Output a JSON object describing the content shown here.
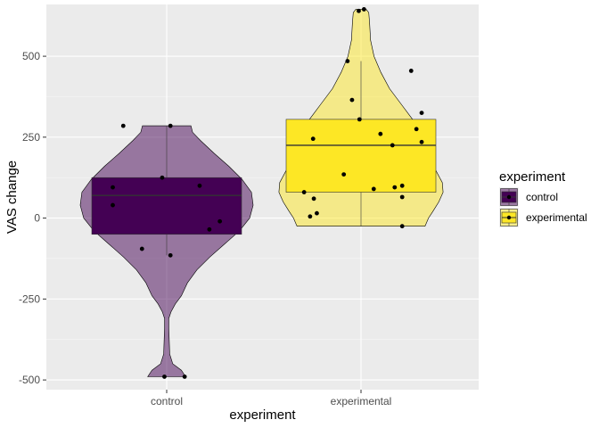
{
  "chart_data": {
    "type": "violin",
    "xlabel": "experiment",
    "ylabel": "VAS change",
    "ylim": [
      -530,
      660
    ],
    "yticks": [
      -500,
      -250,
      0,
      250,
      500
    ],
    "ytick_labels": [
      "-500",
      "-250",
      "0",
      "250",
      "500"
    ],
    "categories": [
      "control",
      "experimental"
    ],
    "grid": true,
    "legend": {
      "title": "experiment",
      "position": "right",
      "entries": [
        "control",
        "experimental"
      ]
    },
    "series": [
      {
        "name": "control",
        "color": "#440154",
        "violin_alpha": 0.5,
        "box": {
          "whisker_low": -115,
          "q1": -50,
          "median": 70,
          "q3": 125,
          "whisker_high": 285
        },
        "density": [
          [
            -490,
            0.22
          ],
          [
            -470,
            0.17
          ],
          [
            -450,
            0.07
          ],
          [
            -420,
            0.035
          ],
          [
            -380,
            0.03
          ],
          [
            -340,
            0.025
          ],
          [
            -310,
            0.025
          ],
          [
            -290,
            0.05
          ],
          [
            -265,
            0.1
          ],
          [
            -240,
            0.17
          ],
          [
            -200,
            0.24
          ],
          [
            -160,
            0.35
          ],
          [
            -120,
            0.5
          ],
          [
            -80,
            0.67
          ],
          [
            -40,
            0.84
          ],
          [
            0,
            0.96
          ],
          [
            40,
            1.0
          ],
          [
            80,
            0.98
          ],
          [
            120,
            0.87
          ],
          [
            160,
            0.72
          ],
          [
            200,
            0.55
          ],
          [
            240,
            0.39
          ],
          [
            265,
            0.3
          ],
          [
            285,
            0.28
          ]
        ],
        "points": [
          [
            -490,
            -0.03
          ],
          [
            -490,
            0.24
          ],
          [
            -115,
            0.05
          ],
          [
            -95,
            -0.33
          ],
          [
            -35,
            0.57
          ],
          [
            -10,
            0.71
          ],
          [
            40,
            -0.72
          ],
          [
            95,
            -0.72
          ],
          [
            100,
            0.44
          ],
          [
            125,
            -0.06
          ],
          [
            285,
            -0.58
          ],
          [
            285,
            0.05
          ]
        ]
      },
      {
        "name": "experimental",
        "color": "#FDE725",
        "violin_alpha": 0.5,
        "box": {
          "whisker_low": -25,
          "q1": 80,
          "median": 225,
          "q3": 305,
          "whisker_high": 485
        },
        "density": [
          [
            -25,
            0.74
          ],
          [
            0,
            0.78
          ],
          [
            20,
            0.83
          ],
          [
            50,
            0.9
          ],
          [
            80,
            0.95
          ],
          [
            110,
            0.94
          ],
          [
            150,
            0.86
          ],
          [
            200,
            0.79
          ],
          [
            250,
            0.72
          ],
          [
            300,
            0.61
          ],
          [
            350,
            0.47
          ],
          [
            400,
            0.33
          ],
          [
            450,
            0.23
          ],
          [
            500,
            0.15
          ],
          [
            550,
            0.11
          ],
          [
            600,
            0.1
          ],
          [
            635,
            0.09
          ],
          [
            645,
            0.06
          ]
        ],
        "points": [
          [
            -25,
            0.55
          ],
          [
            5,
            -0.68
          ],
          [
            15,
            -0.59
          ],
          [
            60,
            -0.63
          ],
          [
            65,
            0.55
          ],
          [
            80,
            -0.76
          ],
          [
            90,
            0.17
          ],
          [
            95,
            0.45
          ],
          [
            100,
            0.55
          ],
          [
            135,
            -0.23
          ],
          [
            225,
            0.42
          ],
          [
            235,
            0.81
          ],
          [
            245,
            -0.64
          ],
          [
            260,
            0.26
          ],
          [
            275,
            0.74
          ],
          [
            305,
            -0.02
          ],
          [
            325,
            0.81
          ],
          [
            365,
            -0.12
          ],
          [
            455,
            0.67
          ],
          [
            485,
            -0.18
          ],
          [
            640,
            -0.03
          ],
          [
            645,
            0.04
          ]
        ]
      }
    ]
  }
}
